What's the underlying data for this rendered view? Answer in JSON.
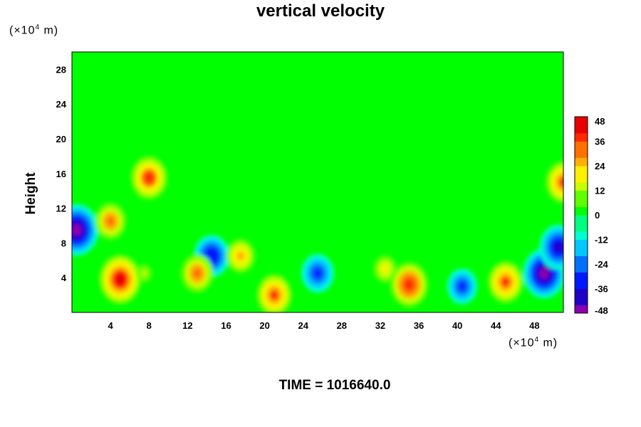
{
  "chart_data": {
    "type": "heatmap",
    "title": "vertical velocity",
    "ylabel": "Height",
    "xlabel": "",
    "y_unit": {
      "prefix": "(×10",
      "exp": "4",
      "suffix": " m)"
    },
    "x_unit": {
      "prefix": "(×10",
      "exp": "4",
      "suffix": " m)"
    },
    "xlim": [
      0,
      51
    ],
    "ylim": [
      0,
      30
    ],
    "x_ticks": [
      4,
      8,
      12,
      16,
      20,
      24,
      28,
      32,
      36,
      40,
      44,
      48
    ],
    "y_ticks": [
      4,
      8,
      12,
      16,
      20,
      24,
      28
    ],
    "colorbar": {
      "min": -48,
      "max": 48,
      "step": 4,
      "tick_values": [
        48,
        36,
        24,
        12,
        0,
        -12,
        -24,
        -36,
        -48
      ]
    },
    "features": [
      {
        "x": 5,
        "y": 3.8,
        "value": 44
      },
      {
        "x": 7.5,
        "y": 4.5,
        "value": 14
      },
      {
        "x": 14.5,
        "y": 6.5,
        "value": -36
      },
      {
        "x": 17.5,
        "y": 6.5,
        "value": 28
      },
      {
        "x": 21,
        "y": 2,
        "value": 36
      },
      {
        "x": 25.5,
        "y": 4.5,
        "value": -34
      },
      {
        "x": 32.5,
        "y": 5,
        "value": 22
      },
      {
        "x": 35,
        "y": 3.2,
        "value": 40
      },
      {
        "x": 40.5,
        "y": 3,
        "value": -30
      },
      {
        "x": 45,
        "y": 3.5,
        "value": 36
      },
      {
        "x": 49,
        "y": 4.5,
        "value": -44
      },
      {
        "x": 50.5,
        "y": 7.5,
        "value": -40
      },
      {
        "x": 0.5,
        "y": 9.5,
        "value": -46
      },
      {
        "x": 8,
        "y": 15.5,
        "value": 38
      },
      {
        "x": 4,
        "y": 10.5,
        "value": 32
      },
      {
        "x": 51,
        "y": 15,
        "value": 36
      },
      {
        "x": 13,
        "y": 4.5,
        "value": 34
      }
    ]
  },
  "footer": {
    "label": "TIME = 1016640.0"
  }
}
